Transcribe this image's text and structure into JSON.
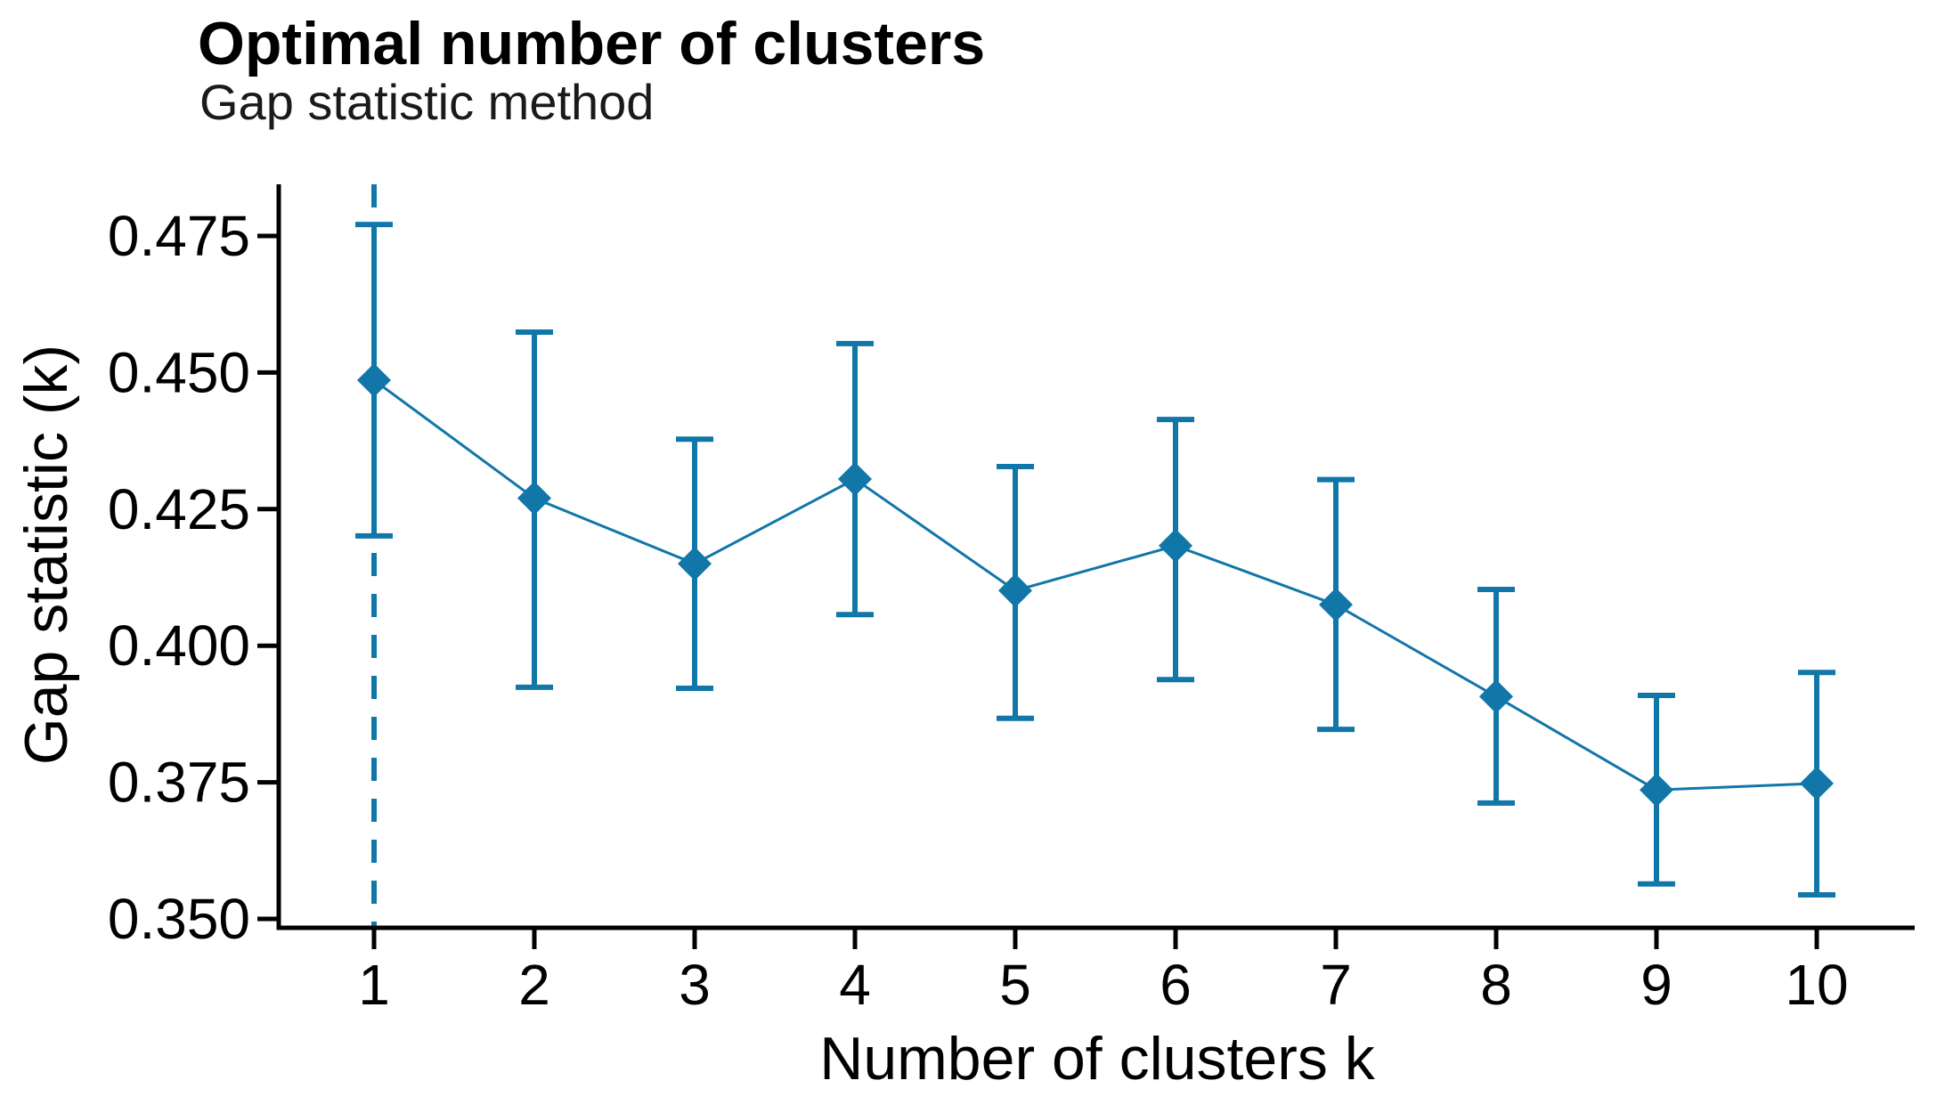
{
  "header": {
    "title": "Optimal number of clusters",
    "subtitle": "Gap statistic method"
  },
  "chart_data": {
    "type": "line",
    "title": "Optimal number of clusters",
    "subtitle": "Gap statistic method",
    "xlabel": "Number of clusters k",
    "ylabel": "Gap statistic (k)",
    "x": [
      1,
      2,
      3,
      4,
      5,
      6,
      7,
      8,
      9,
      10
    ],
    "series": [
      {
        "name": "Gap statistic",
        "values": [
          0.4486,
          0.427,
          0.415,
          0.4305,
          0.4101,
          0.4183,
          0.4075,
          0.3907,
          0.3736,
          0.3748
        ]
      }
    ],
    "error_bars": {
      "ymax": [
        0.4771,
        0.4574,
        0.4378,
        0.4553,
        0.4328,
        0.4414,
        0.4304,
        0.4103,
        0.3909,
        0.3951
      ],
      "ymin": [
        0.4201,
        0.3924,
        0.3922,
        0.4057,
        0.3867,
        0.3938,
        0.3847,
        0.3712,
        0.3564,
        0.3544
      ]
    },
    "vline_x": 1,
    "vline_style": "dashed",
    "xticks": [
      1,
      2,
      3,
      4,
      5,
      6,
      7,
      8,
      9,
      10
    ],
    "yticks": [
      0.35,
      0.375,
      0.4,
      0.425,
      0.45,
      0.475
    ],
    "ytick_labels": [
      "0.350",
      "0.375",
      "0.400",
      "0.425",
      "0.450",
      "0.475"
    ],
    "ylim": [
      0.3487,
      0.4845
    ],
    "xlim": [
      0.4,
      10.6
    ],
    "grid": false,
    "legend_position": "none",
    "marker": "diamond",
    "accent_color": "#1176a8",
    "axis_color": "#000000",
    "text_color": "#000000"
  }
}
